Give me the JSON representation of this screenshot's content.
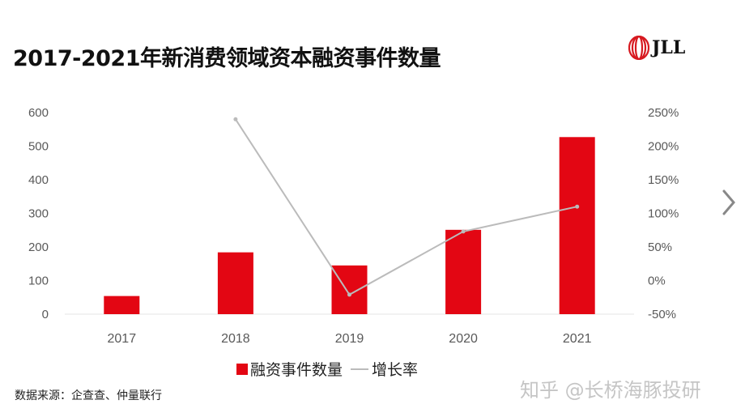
{
  "title": "2017-2021年新消费领域资本融资事件数量",
  "logo": "JLL",
  "source": "数据来源：企查查、仲量联行",
  "watermark": "知乎 @长桥海豚投研",
  "icons": {
    "next": "chevron-right-icon",
    "logo": "jll-logo-icon"
  },
  "colors": {
    "bar": "#e30613",
    "line": "#bbbbbb"
  },
  "chart_data": {
    "type": "bar",
    "title": "2017-2021年新消费领域资本融资事件数量",
    "categories": [
      "2017",
      "2018",
      "2019",
      "2020",
      "2021"
    ],
    "series": [
      {
        "name": "融资事件数量",
        "type": "bar",
        "axis": "left",
        "values": [
          54,
          184,
          145,
          251,
          527
        ]
      },
      {
        "name": "增长率",
        "type": "line",
        "axis": "right",
        "values": [
          null,
          240,
          -21,
          73,
          110
        ]
      }
    ],
    "y_left": {
      "range": [
        0,
        600
      ],
      "ticks": [
        "0",
        "100",
        "200",
        "300",
        "400",
        "500",
        "600"
      ]
    },
    "y_right": {
      "range": [
        -50,
        250
      ],
      "ticks": [
        "-50%",
        "0%",
        "50%",
        "100%",
        "150%",
        "200%",
        "250%"
      ]
    },
    "grid": false,
    "legend": "bottom"
  }
}
